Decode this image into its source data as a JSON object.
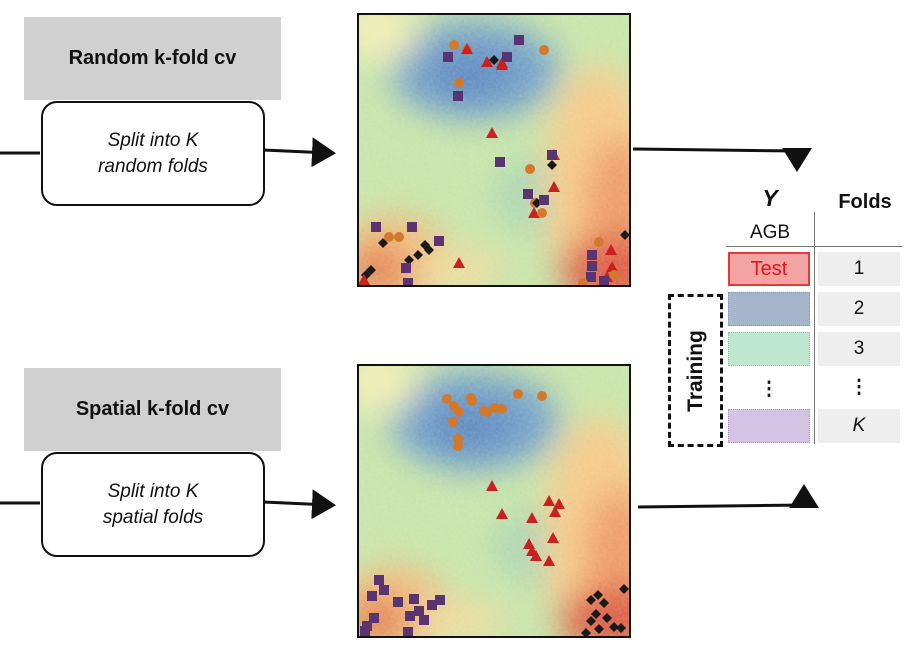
{
  "panel_random": {
    "title": "Random k-fold cv",
    "desc_line1": "Split into K",
    "desc_line2": "random folds"
  },
  "panel_spatial": {
    "title": "Spatial k-fold cv",
    "desc_line1": "Split into K",
    "desc_line2": "spatial folds"
  },
  "table": {
    "y_header": "Y",
    "y_sub": "AGB",
    "folds_header": "Folds",
    "test_label": "Test",
    "training_label": "Training",
    "fold_labels": [
      "1",
      "2",
      "3",
      "⋮",
      "K"
    ],
    "y_ellipsis": "⋮"
  },
  "colors": {
    "fold1_test": "#f4a3a3",
    "fold1_test_border": "#e23a3a",
    "fold1_test_text": "#e8141b",
    "fold2": "#a6b4cc",
    "fold3": "#bfe7cf",
    "foldK": "#d6c4e4",
    "marker_orange": "#d4782c",
    "marker_red": "#cc2020",
    "marker_purple": "#5a3470",
    "marker_black": "#1a1a1a"
  }
}
